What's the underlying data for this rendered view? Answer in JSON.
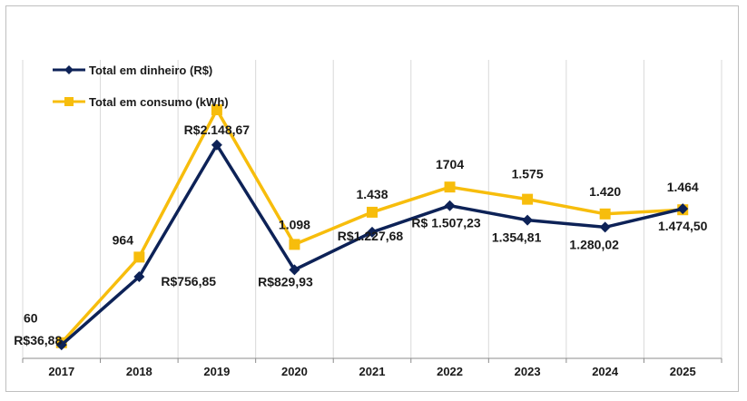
{
  "chart_data": {
    "type": "line",
    "categories": [
      "2017",
      "2018",
      "2019",
      "2020",
      "2021",
      "2022",
      "2023",
      "2024",
      "2025"
    ],
    "series": [
      {
        "name": "Total em dinheiro (R$)",
        "color": "#0d2257",
        "marker": "diamond",
        "values": [
          36.88,
          756.85,
          2148.67,
          829.93,
          1227.68,
          1507.23,
          1354.81,
          1280.02,
          1474.5
        ],
        "labels": [
          "R$36,88",
          "R$756,85",
          "R$2.148,67",
          "R$829,93",
          "R$1.227,68",
          "R$ 1.507,23",
          "1.354,81",
          "1.280,02",
          "1.474,50"
        ]
      },
      {
        "name": "Total em consumo (kWh)",
        "color": "#f7bd0c",
        "marker": "square",
        "values": [
          60,
          964,
          2520,
          1098,
          1438,
          1704,
          1575,
          1420,
          1464
        ],
        "labels": [
          "60",
          "964",
          "",
          "1.098",
          "1.438",
          "1704",
          "1.575",
          "1.420",
          "1.464"
        ]
      }
    ],
    "legend_position": "top-left",
    "grid": "vertical",
    "ylim": [
      0,
      2520
    ]
  }
}
